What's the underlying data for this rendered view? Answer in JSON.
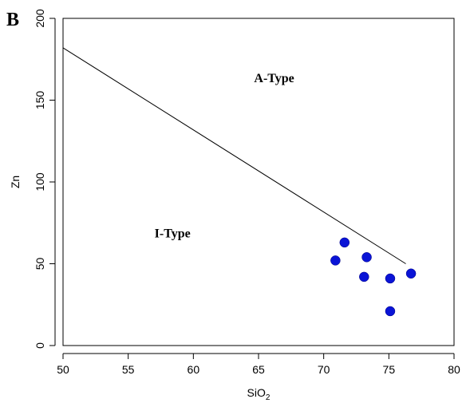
{
  "panel_label": "B",
  "chart_data": {
    "type": "scatter",
    "xlabel": "SiO",
    "xlabel_subscript": "2",
    "ylabel": "Zn",
    "xlim": [
      50,
      80
    ],
    "ylim": [
      0,
      200
    ],
    "xticks": [
      50,
      55,
      60,
      65,
      70,
      75,
      80
    ],
    "yticks": [
      0,
      50,
      100,
      150,
      200
    ],
    "grid": false,
    "marker_color": "#0a14d6",
    "line_color": "#000000",
    "points": [
      {
        "x": 70.9,
        "y": 52
      },
      {
        "x": 71.6,
        "y": 63
      },
      {
        "x": 73.1,
        "y": 42
      },
      {
        "x": 73.3,
        "y": 54
      },
      {
        "x": 75.1,
        "y": 41
      },
      {
        "x": 75.1,
        "y": 21
      },
      {
        "x": 76.7,
        "y": 44
      }
    ],
    "boundary_line": {
      "x": [
        50,
        76.3
      ],
      "y": [
        182,
        50
      ]
    },
    "annotations": [
      {
        "text": "A-Type",
        "x": 66.2,
        "y": 161
      },
      {
        "text": "I-Type",
        "x": 58.4,
        "y": 66
      }
    ]
  }
}
